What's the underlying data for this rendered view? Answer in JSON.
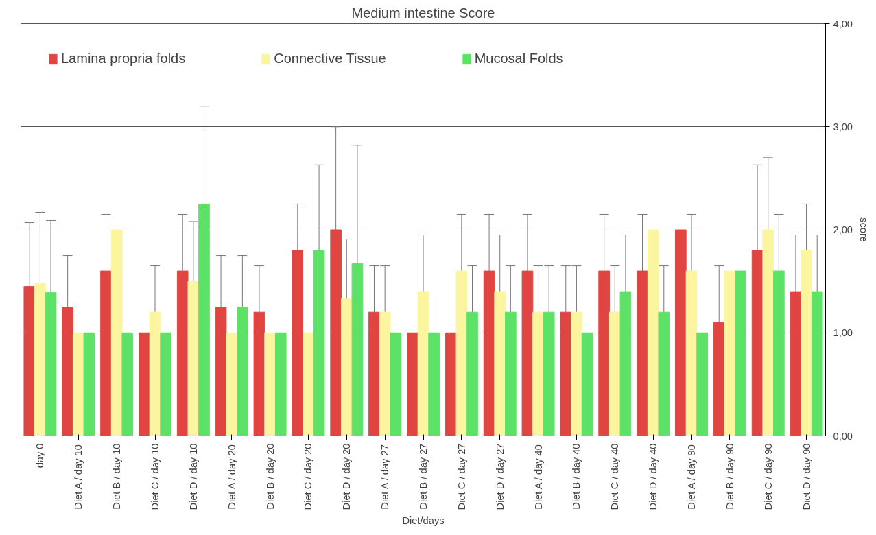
{
  "chart_data": {
    "type": "bar",
    "title": "Medium intestine Score",
    "xlabel": "Diet/days",
    "ylabel": "score",
    "categories": [
      "day 0",
      "Diet A / day 10",
      "Diet B / day 10",
      "Diet C / day 10",
      "Diet D / day 10",
      "Diet A / day 20",
      "Diet B / day 20",
      "Diet C / day 20",
      "Diet D / day 20",
      "Diet A / day 27",
      "Diet B / day 27",
      "Diet C / day 27",
      "Diet D / day 27",
      "Diet A / day 40",
      "Diet B / day 40",
      "Diet C / day 40",
      "Diet D / day 40",
      "Diet A / day 90",
      "Diet B / day 90",
      "Diet C / day 90",
      "Diet D / day 90"
    ],
    "series": [
      {
        "name": "Lamina propria folds",
        "color": "#e04541",
        "values": [
          1.45,
          1.25,
          1.6,
          1.0,
          1.6,
          1.25,
          1.2,
          1.8,
          2.0,
          1.2,
          1.0,
          1.0,
          1.6,
          1.6,
          1.2,
          1.6,
          1.6,
          2.0,
          1.1,
          1.8,
          1.4
        ],
        "errors": [
          [
            1.45,
            2.07
          ],
          [
            1.25,
            1.75
          ],
          [
            1.6,
            2.15
          ],
          null,
          [
            1.6,
            2.15
          ],
          [
            1.25,
            1.75
          ],
          [
            1.2,
            1.65
          ],
          [
            1.8,
            2.25
          ],
          [
            2.0,
            3.0
          ],
          [
            1.2,
            1.65
          ],
          null,
          null,
          [
            1.6,
            2.15
          ],
          [
            1.6,
            2.15
          ],
          [
            1.2,
            1.65
          ],
          [
            1.6,
            2.15
          ],
          [
            1.6,
            2.15
          ],
          null,
          [
            1.1,
            1.65
          ],
          [
            1.8,
            2.63
          ],
          [
            1.4,
            1.95
          ]
        ]
      },
      {
        "name": "Connective Tissue",
        "color": "#faf59e",
        "values": [
          1.48,
          1.0,
          2.0,
          1.2,
          1.5,
          1.0,
          1.0,
          1.0,
          1.33,
          1.2,
          1.4,
          1.6,
          1.4,
          1.2,
          1.2,
          1.2,
          2.0,
          1.6,
          1.6,
          2.0,
          1.8
        ],
        "errors": [
          [
            1.48,
            2.17
          ],
          null,
          null,
          [
            1.2,
            1.65
          ],
          [
            1.5,
            2.08
          ],
          null,
          null,
          null,
          [
            1.33,
            1.91
          ],
          [
            1.2,
            1.65
          ],
          [
            1.4,
            1.95
          ],
          [
            1.6,
            2.15
          ],
          [
            1.4,
            1.95
          ],
          [
            1.2,
            1.65
          ],
          [
            1.2,
            1.65
          ],
          [
            1.2,
            1.65
          ],
          null,
          [
            1.6,
            2.15
          ],
          null,
          [
            2.0,
            2.7
          ],
          [
            1.8,
            2.25
          ]
        ]
      },
      {
        "name": "Mucosal Folds",
        "color": "#5ce266",
        "values": [
          1.39,
          1.0,
          1.0,
          1.0,
          2.25,
          1.25,
          1.0,
          1.8,
          1.67,
          1.0,
          1.0,
          1.2,
          1.2,
          1.2,
          1.0,
          1.4,
          1.2,
          1.0,
          1.6,
          1.6,
          1.4
        ],
        "errors": [
          [
            1.39,
            2.09
          ],
          null,
          null,
          null,
          [
            2.25,
            3.2
          ],
          [
            1.25,
            1.75
          ],
          null,
          [
            1.8,
            2.63
          ],
          [
            1.67,
            2.82
          ],
          null,
          null,
          [
            1.2,
            1.65
          ],
          [
            1.2,
            1.65
          ],
          [
            1.2,
            1.65
          ],
          null,
          [
            1.4,
            1.95
          ],
          [
            1.2,
            1.65
          ],
          null,
          null,
          [
            1.6,
            2.15
          ],
          [
            1.4,
            1.95
          ]
        ]
      }
    ],
    "ylim": [
      0,
      4
    ],
    "yticks": [
      {
        "value": 0,
        "label": "0,00"
      },
      {
        "value": 1,
        "label": "1,00"
      },
      {
        "value": 2,
        "label": "2,00"
      },
      {
        "value": 3,
        "label": "3,00"
      },
      {
        "value": 4,
        "label": "4,00"
      }
    ],
    "grid": "y",
    "legend": "top left"
  }
}
